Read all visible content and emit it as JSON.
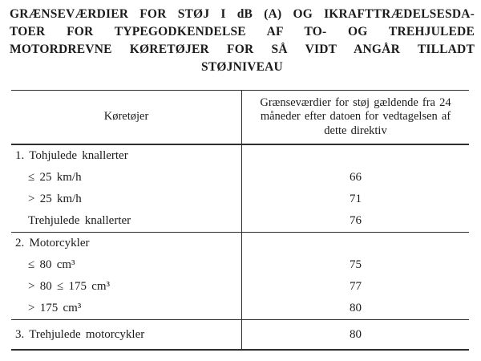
{
  "title": {
    "lines": [
      "GRÆNSEVÆRDIER FOR STØJ I dB (A) OG IKRAFTTRÆDELSESDA-",
      "TOER FOR TYPEGODKENDELSE AF TO- OG TREHJULEDE",
      "MOTORDREVNE KØRETØJER FOR SÅ VIDT ANGÅR TILLADT",
      "STØJNIVEAU"
    ]
  },
  "table": {
    "columns": [
      "Køretøjer",
      "Grænseværdier for støj gældende fra 24 måneder efter datoen for vedtagelsen af dette direktiv"
    ],
    "sections": [
      {
        "heading": "1. Tohjulede knallerter",
        "rows": [
          {
            "label": "≤ 25 km/h",
            "value": "66"
          },
          {
            "label": "> 25 km/h",
            "value": "71"
          },
          {
            "label": "Trehjulede knallerter",
            "value": "76"
          }
        ]
      },
      {
        "heading": "2. Motorcykler",
        "rows": [
          {
            "label": "≤ 80 cm³",
            "value": "75"
          },
          {
            "label": "> 80 ≤ 175 cm³",
            "value": "77"
          },
          {
            "label": "> 175 cm³",
            "value": "80"
          }
        ]
      },
      {
        "heading": "3. Trehjulede motorcykler",
        "value": "80"
      }
    ]
  }
}
